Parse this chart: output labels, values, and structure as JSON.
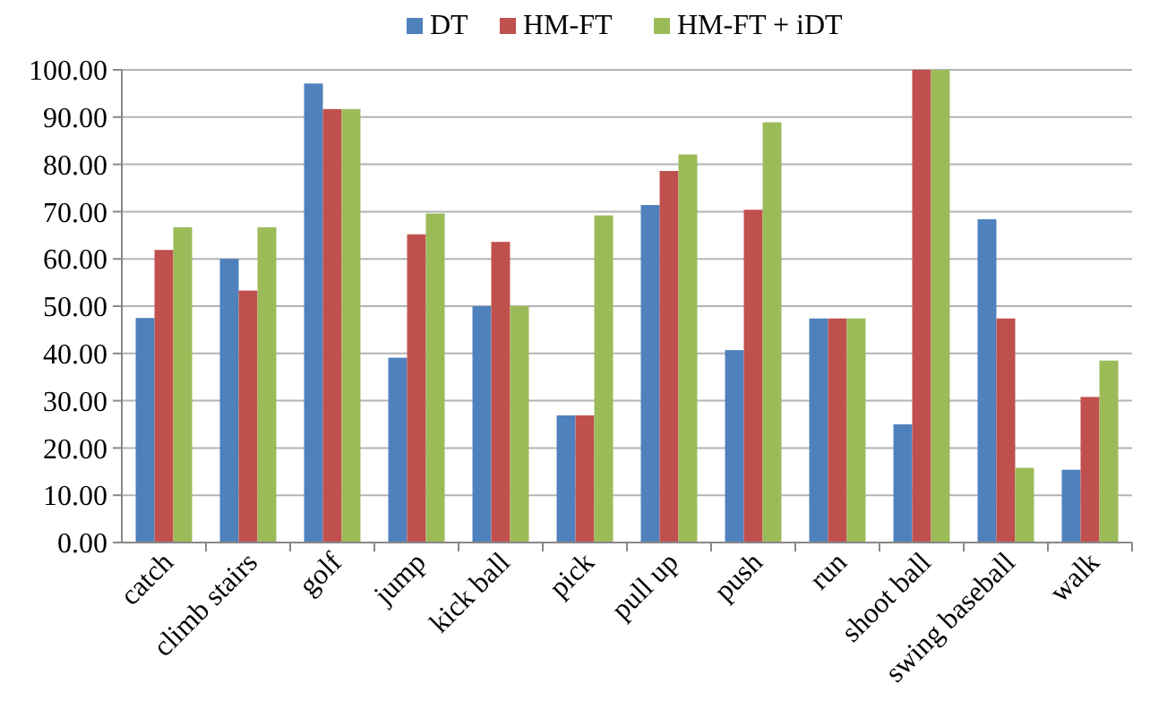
{
  "chart_data": {
    "type": "bar",
    "categories": [
      "catch",
      "climb stairs",
      "golf",
      "jump",
      "kick ball",
      "pick",
      "pull up",
      "push",
      "run",
      "shoot ball",
      "swing baseball",
      "walk"
    ],
    "series": [
      {
        "name": "DT",
        "color": "#4f81bd",
        "values": [
          47.5,
          60.0,
          97.1,
          39.1,
          50.0,
          26.9,
          71.4,
          40.7,
          47.4,
          25.0,
          68.4,
          15.4
        ]
      },
      {
        "name": "HM-FT",
        "color": "#c0504d",
        "values": [
          61.9,
          53.3,
          91.7,
          65.2,
          63.6,
          26.9,
          78.6,
          70.4,
          47.4,
          100.0,
          47.4,
          30.8
        ]
      },
      {
        "name": "HM-FT + iDT",
        "color": "#9bbb59",
        "values": [
          66.7,
          66.7,
          91.7,
          69.6,
          50.0,
          69.2,
          82.1,
          88.9,
          47.4,
          100.0,
          15.8,
          38.5
        ]
      }
    ],
    "ylim": [
      0,
      100
    ],
    "yticks": [
      {
        "value": 0,
        "label": "0.00"
      },
      {
        "value": 10,
        "label": "10.00"
      },
      {
        "value": 20,
        "label": "20.00"
      },
      {
        "value": 30,
        "label": "30.00"
      },
      {
        "value": 40,
        "label": "40.00"
      },
      {
        "value": 50,
        "label": "50.00"
      },
      {
        "value": 60,
        "label": "60.00"
      },
      {
        "value": 70,
        "label": "70.00"
      },
      {
        "value": 80,
        "label": "80.00"
      },
      {
        "value": 90,
        "label": "90.00"
      },
      {
        "value": 100,
        "label": "100.00"
      }
    ],
    "grid": "y",
    "legend": "top"
  }
}
